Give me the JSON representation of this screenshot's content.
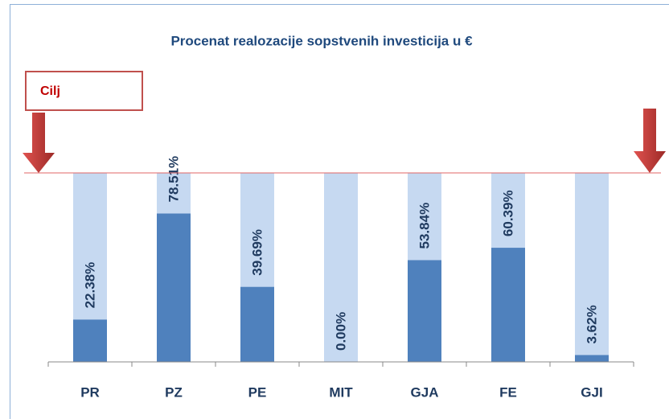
{
  "chart_data": {
    "type": "bar",
    "title": "Procenat realozacije sopstvenih investicija u €",
    "annotation": "Cilj",
    "categories": [
      "PR",
      "PZ",
      "PE",
      "MIT",
      "GJA",
      "FE",
      "GJI"
    ],
    "values": [
      22.38,
      78.51,
      39.69,
      0.0,
      53.84,
      60.39,
      3.62
    ],
    "value_labels": [
      "22.38%",
      "78.51%",
      "39.69%",
      "0.00%",
      "53.84%",
      "60.39%",
      "3.62%"
    ],
    "color": "#4f81bd",
    "target_color": "#c6d9f1",
    "ylim": [
      0,
      100
    ]
  }
}
